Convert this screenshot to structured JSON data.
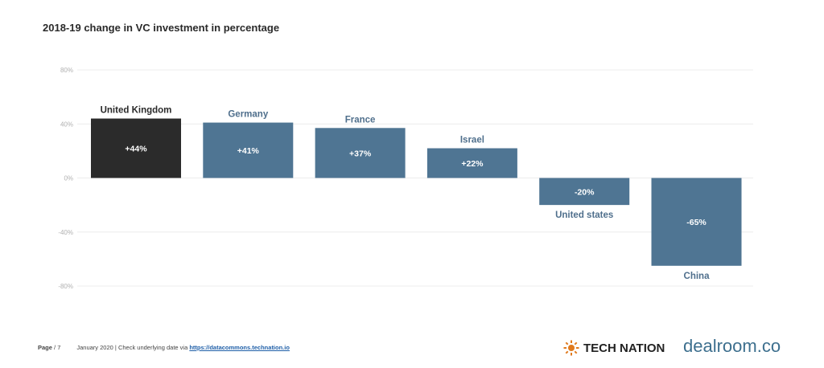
{
  "header": {
    "title": "2018-19 change in VC investment in percentage"
  },
  "chart_data": {
    "type": "bar",
    "categories": [
      "United Kingdom",
      "Germany",
      "France",
      "Israel",
      "United states",
      "China"
    ],
    "values": [
      44,
      41,
      37,
      22,
      -20,
      -65
    ],
    "value_labels": [
      "+44%",
      "+41%",
      "+37%",
      "+22%",
      "-20%",
      "-65%"
    ],
    "highlight_index": 0,
    "colors": {
      "highlight": "#2b2b2b",
      "default": "#4f7593"
    },
    "ylim": [
      -80,
      80
    ],
    "yticks": [
      80,
      40,
      0,
      -40,
      -80
    ],
    "ytick_labels": [
      "80%",
      "40%",
      "0%",
      "-40%",
      "-80%"
    ],
    "grid": true,
    "title": "2018-19 change in VC investment in percentage",
    "xlabel": "",
    "ylabel": ""
  },
  "footer": {
    "page_label": "Page",
    "page_num": "/ 7",
    "note": "January 2020 | Check underlying date via",
    "link": "https://datacommons.technation.io"
  },
  "brands": {
    "tech_nation": "TECH NATION",
    "dealroom": "dealroom.co"
  }
}
